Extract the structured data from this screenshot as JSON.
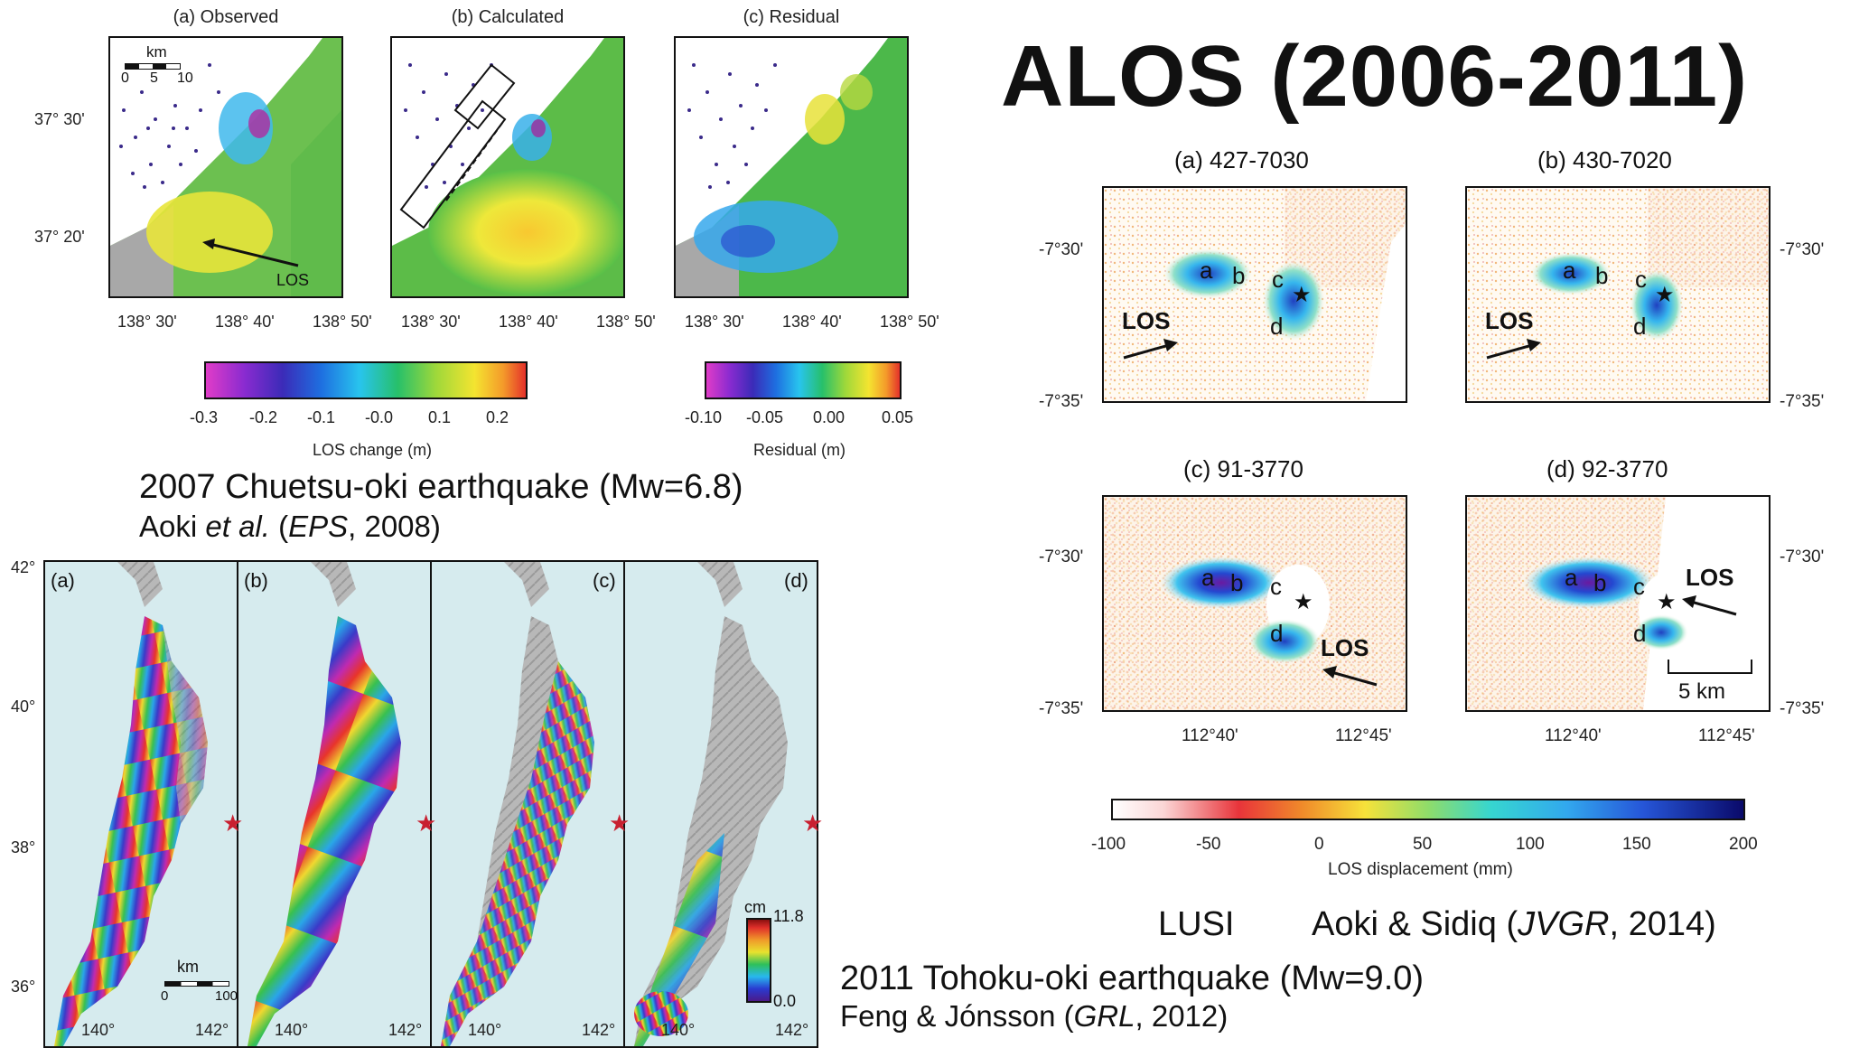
{
  "title": "ALOS (2006-2011)",
  "chuetsu": {
    "panels": [
      {
        "title": "(a) Observed"
      },
      {
        "title": "(b) Calculated"
      },
      {
        "title": "(c) Residual"
      }
    ],
    "lat_ticks": [
      "37° 30'",
      "37° 20'"
    ],
    "lon_ticks": [
      "138° 30'",
      "138° 40'",
      "138° 50'"
    ],
    "scale": {
      "label": "km",
      "ticks": [
        "0",
        "5",
        "10"
      ]
    },
    "los_label": "LOS",
    "colorbar_los": {
      "ticks": [
        "-0.3",
        "-0.2",
        "-0.1",
        "-0.0",
        "0.1",
        "0.2"
      ],
      "label": "LOS change (m)"
    },
    "colorbar_resid": {
      "ticks": [
        "-0.10",
        "-0.05",
        "0.00",
        "0.05"
      ],
      "label": "Residual (m)"
    },
    "caption": "2007 Chuetsu-oki earthquake (Mw=6.8)",
    "citation": {
      "authors": "Aoki",
      "etal": "et al.",
      "journal": "EPS",
      "year": ", 2008)",
      "open": " (",
      "sep": ""
    }
  },
  "tohoku": {
    "panels": [
      {
        "label": "(a)"
      },
      {
        "label": "(b)"
      },
      {
        "label": "(c)"
      },
      {
        "label": "(d)"
      }
    ],
    "lat_ticks": [
      "42°",
      "40°",
      "38°",
      "36°"
    ],
    "lon_ticks": [
      "140°",
      "142°",
      "140°",
      "142°",
      "140°",
      "142°",
      "140°",
      "142°"
    ],
    "scale": {
      "label": "km",
      "ticks": [
        "0",
        "100"
      ]
    },
    "colorbar": {
      "unit": "cm",
      "max": "11.8",
      "min": "0.0"
    },
    "caption": "2011 Tohoku-oki earthquake (Mw=9.0)",
    "citation": {
      "authors": "Feng & Jónsson (",
      "journal": "GRL",
      "year": ", 2012)"
    }
  },
  "lusi": {
    "panels": [
      {
        "title": "(a) 427-7030"
      },
      {
        "title": "(b) 430-7020"
      },
      {
        "title": "(c) 91-3770"
      },
      {
        "title": "(d) 92-3770"
      }
    ],
    "lat_ticks": [
      "-7°30'",
      "-7°35'"
    ],
    "lon_ticks": [
      "112°40'",
      "112°45'"
    ],
    "site_labels": [
      "a",
      "b",
      "c",
      "d"
    ],
    "los_label": "LOS",
    "scale_label": "5 km",
    "colorbar": {
      "ticks": [
        "-100",
        "-50",
        "0",
        "50",
        "100",
        "150",
        "200"
      ],
      "label": "LOS displacement (mm)"
    },
    "name": "LUSI",
    "citation": {
      "authors": "Aoki & Sidiq (",
      "journal": "JVGR",
      "year": ", 2014)"
    }
  }
}
